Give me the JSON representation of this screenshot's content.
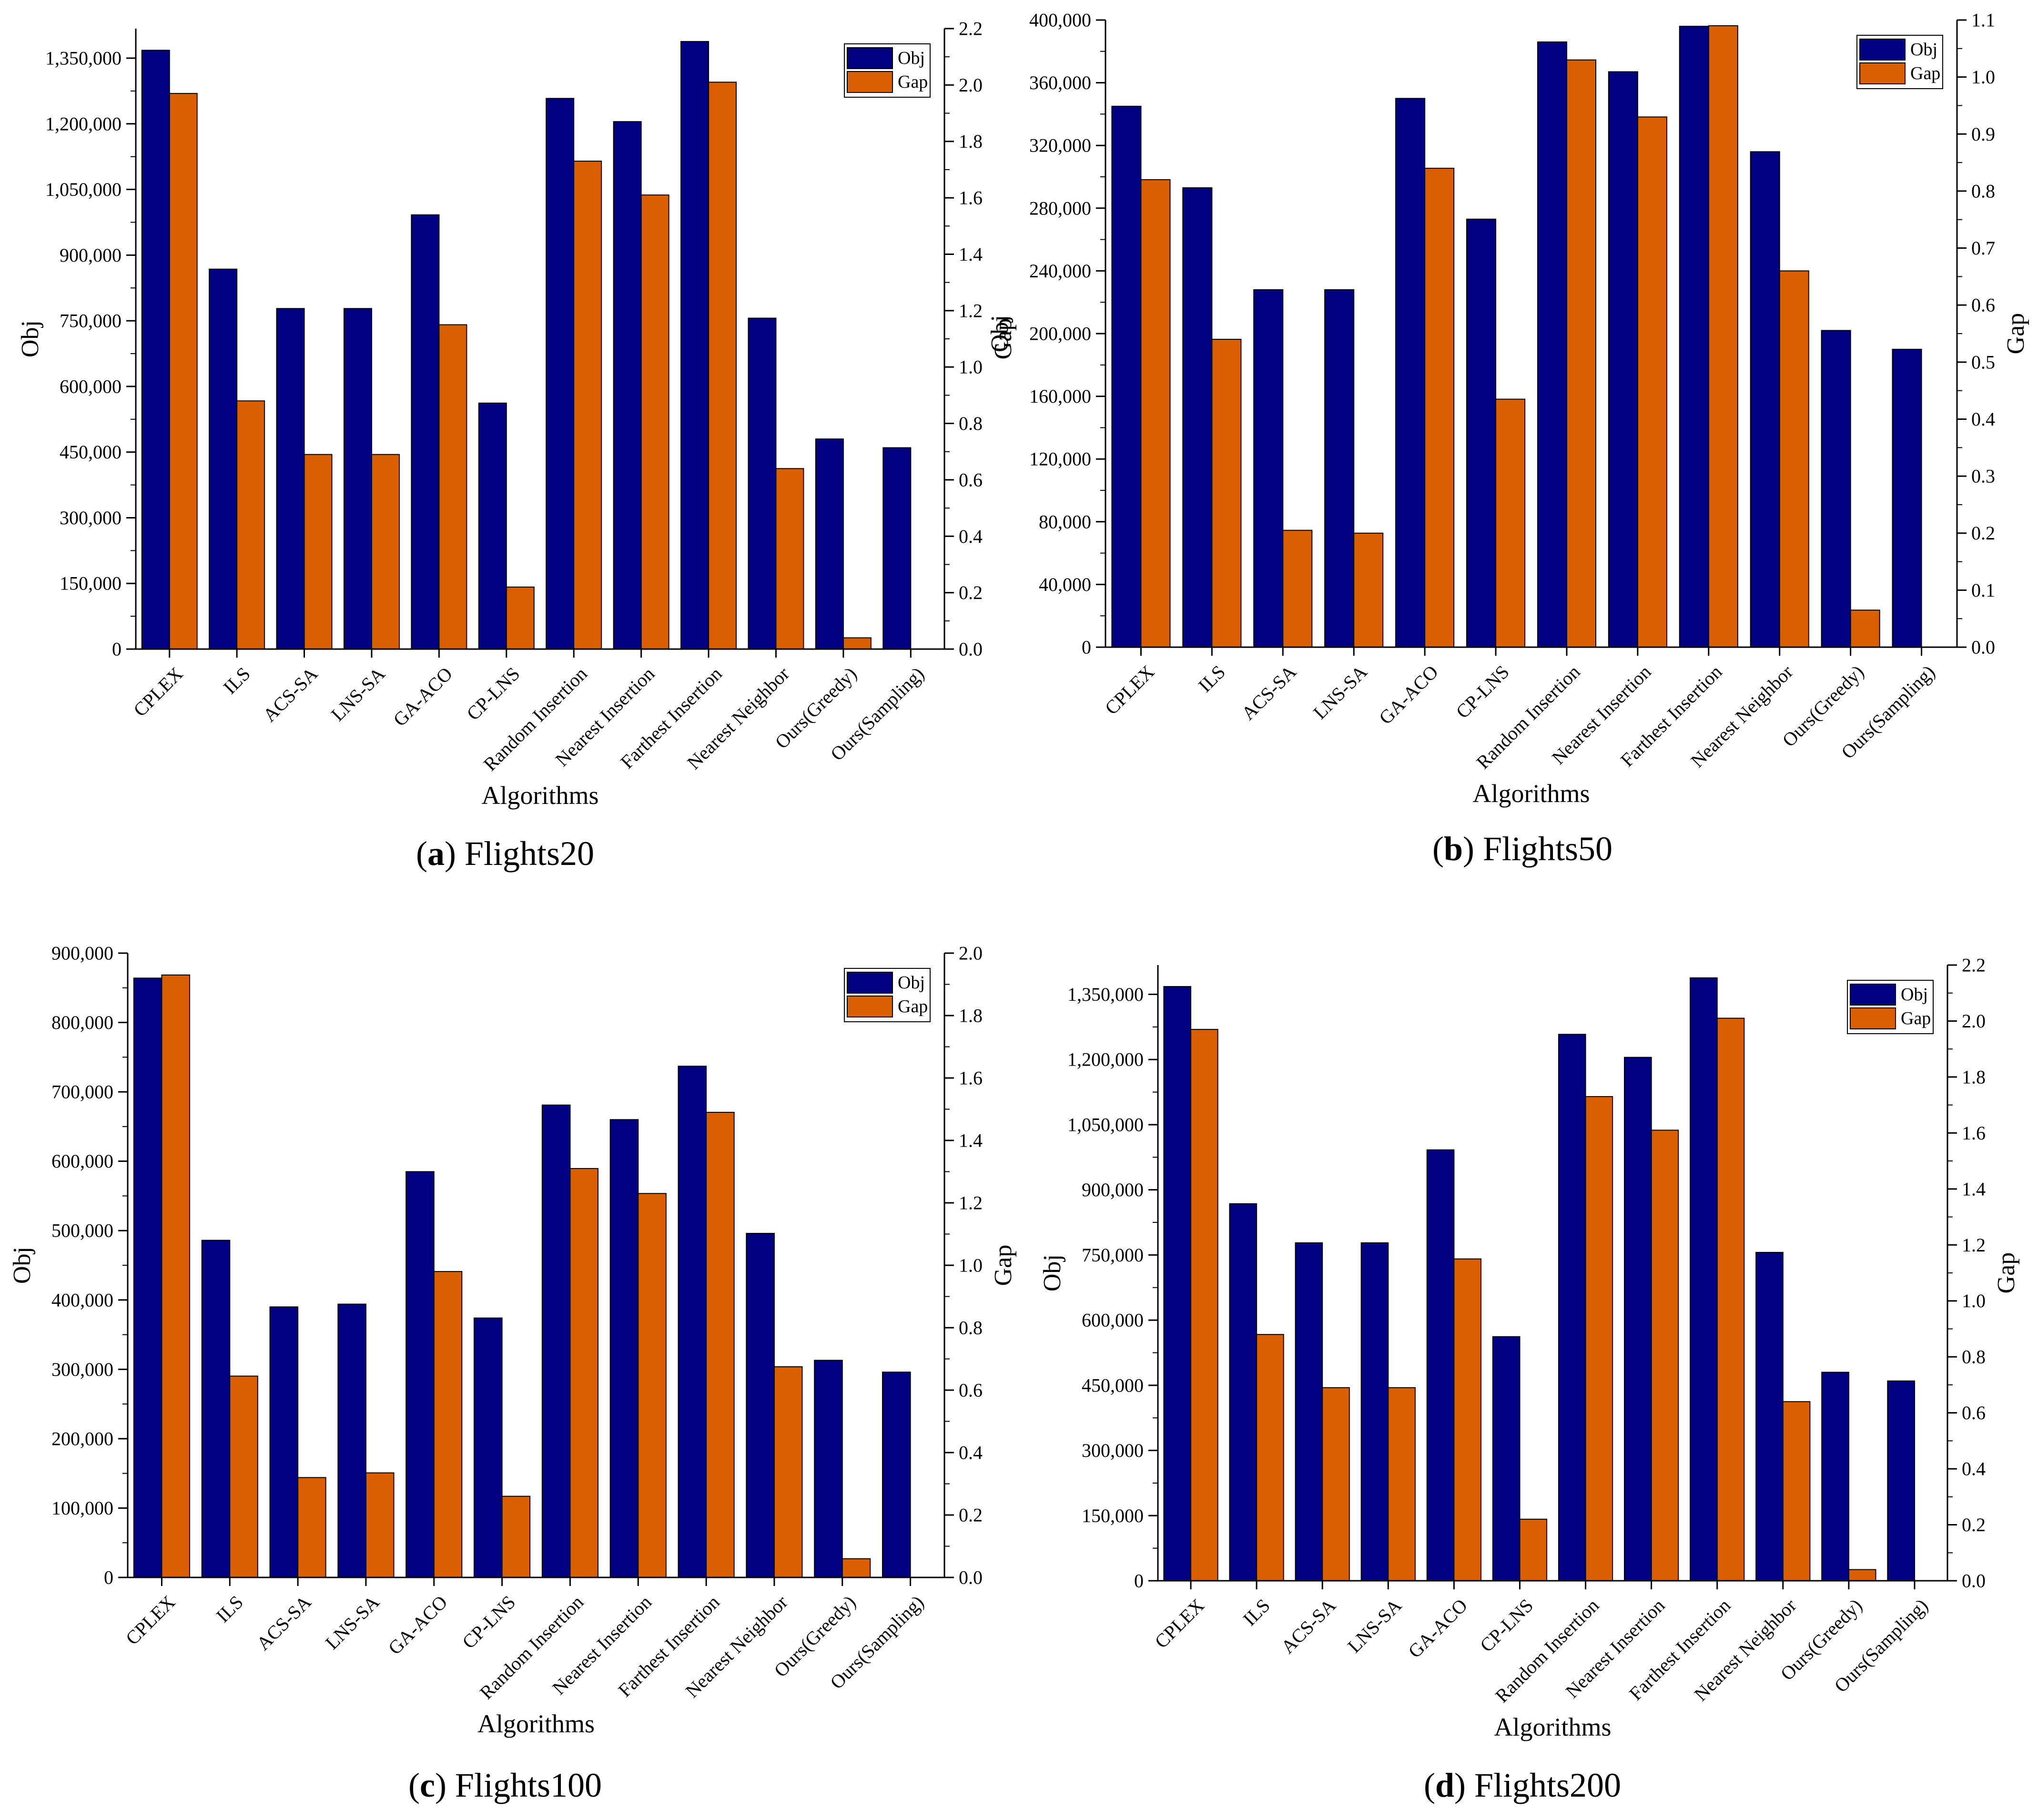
{
  "colors": {
    "obj": "#000080",
    "gap": "#d95f02",
    "axis": "#000000",
    "bar_stroke": "#000000"
  },
  "chart_data": [
    {
      "type": "bar",
      "caption_letter": "a",
      "caption_text": "Flights20",
      "xlabel": "Algorithms",
      "ylabel": "Obj",
      "y2label": "Gap",
      "ylim": [
        0,
        1417500
      ],
      "y2lim": [
        0,
        2.2
      ],
      "yticks": [
        0,
        150000,
        300000,
        450000,
        600000,
        750000,
        900000,
        1050000,
        1200000,
        1350000
      ],
      "ytick_labels": [
        "0",
        "150,000",
        "300,000",
        "450,000",
        "600,000",
        "750,000",
        "900,000",
        "1,050,000",
        "1,200,000",
        "1,350,000"
      ],
      "y2ticks": [
        0,
        0.2,
        0.4,
        0.6,
        0.8,
        1.0,
        1.2,
        1.4,
        1.6,
        1.8,
        2.0,
        2.2
      ],
      "y2tick_labels": [
        "0.0",
        "0.2",
        "0.4",
        "0.6",
        "0.8",
        "1.0",
        "1.2",
        "1.4",
        "1.6",
        "1.8",
        "2.0",
        "2.2"
      ],
      "categories": [
        "CPLEX",
        "ILS",
        "ACS-SA",
        "LNS-SA",
        "GA-ACO",
        "CP-LNS",
        "Random Insertion",
        "Nearest Insertion",
        "Farthest Insertion",
        "Nearest Neighbor",
        "Ours(Greedy)",
        "Ours(Sampling)"
      ],
      "legend": [
        "Obj",
        "Gap"
      ],
      "series": [
        {
          "name": "Obj",
          "axis": "left",
          "values": [
            1368000,
            868000,
            778000,
            778000,
            992000,
            562000,
            1258000,
            1205000,
            1388000,
            756000,
            480000,
            460000
          ]
        },
        {
          "name": "Gap",
          "axis": "right",
          "values": [
            1.97,
            0.88,
            0.69,
            0.69,
            1.15,
            0.22,
            1.73,
            1.61,
            2.01,
            0.64,
            0.04,
            0.0
          ]
        }
      ]
    },
    {
      "type": "bar",
      "caption_letter": "b",
      "caption_text": "Flights50",
      "xlabel": "Algorithms",
      "ylabel": "Obj",
      "y2label": "Gap",
      "ylim": [
        0,
        400000
      ],
      "y2lim": [
        0,
        1.1
      ],
      "yticks": [
        0,
        40000,
        80000,
        120000,
        160000,
        200000,
        240000,
        280000,
        320000,
        360000,
        400000
      ],
      "ytick_labels": [
        "0",
        "40,000",
        "80,000",
        "120,000",
        "160,000",
        "200,000",
        "240,000",
        "280,000",
        "320,000",
        "360,000",
        "400,000"
      ],
      "y2ticks": [
        0,
        0.1,
        0.2,
        0.3,
        0.4,
        0.5,
        0.6,
        0.7,
        0.8,
        0.9,
        1.0,
        1.1
      ],
      "y2tick_labels": [
        "0.0",
        "0.1",
        "0.2",
        "0.3",
        "0.4",
        "0.5",
        "0.6",
        "0.7",
        "0.8",
        "0.9",
        "1.0",
        "1.1"
      ],
      "categories": [
        "CPLEX",
        "ILS",
        "ACS-SA",
        "LNS-SA",
        "GA-ACO",
        "CP-LNS",
        "Random Insertion",
        "Nearest Insertion",
        "Farthest Insertion",
        "Nearest Neighbor",
        "Ours(Greedy)",
        "Ours(Sampling)"
      ],
      "legend": [
        "Obj",
        "Gap"
      ],
      "series": [
        {
          "name": "Obj",
          "axis": "left",
          "values": [
            345000,
            293000,
            228000,
            228000,
            350000,
            273000,
            386000,
            367000,
            396000,
            316000,
            202000,
            190000
          ]
        },
        {
          "name": "Gap",
          "axis": "right",
          "values": [
            0.82,
            0.54,
            0.205,
            0.2,
            0.84,
            0.435,
            1.03,
            0.93,
            1.09,
            0.66,
            0.065,
            0.0
          ]
        }
      ]
    },
    {
      "type": "bar",
      "caption_letter": "c",
      "caption_text": "Flights100",
      "xlabel": "Algorithms",
      "ylabel": "Obj",
      "y2label": "Gap",
      "ylim": [
        0,
        900000
      ],
      "y2lim": [
        0,
        2.0
      ],
      "yticks": [
        0,
        100000,
        200000,
        300000,
        400000,
        500000,
        600000,
        700000,
        800000,
        900000
      ],
      "ytick_labels": [
        "0",
        "100,000",
        "200,000",
        "300,000",
        "400,000",
        "500,000",
        "600,000",
        "700,000",
        "800,000",
        "900,000"
      ],
      "y2ticks": [
        0,
        0.2,
        0.4,
        0.6,
        0.8,
        1.0,
        1.2,
        1.4,
        1.6,
        1.8,
        2.0
      ],
      "y2tick_labels": [
        "0.0",
        "0.2",
        "0.4",
        "0.6",
        "0.8",
        "1.0",
        "1.2",
        "1.4",
        "1.6",
        "1.8",
        "2.0"
      ],
      "categories": [
        "CPLEX",
        "ILS",
        "ACS-SA",
        "LNS-SA",
        "GA-ACO",
        "CP-LNS",
        "Random Insertion",
        "Nearest Insertion",
        "Farthest Insertion",
        "Nearest Neighbor",
        "Ours(Greedy)",
        "Ours(Sampling)"
      ],
      "legend": [
        "Obj",
        "Gap"
      ],
      "series": [
        {
          "name": "Obj",
          "axis": "left",
          "values": [
            864000,
            486000,
            390000,
            394000,
            585000,
            374000,
            681000,
            660000,
            737000,
            496000,
            313000,
            296000
          ]
        },
        {
          "name": "Gap",
          "axis": "right",
          "values": [
            1.93,
            0.645,
            0.32,
            0.335,
            0.98,
            0.26,
            1.31,
            1.23,
            1.49,
            0.675,
            0.06,
            0.0
          ]
        }
      ]
    },
    {
      "type": "bar",
      "caption_letter": "d",
      "caption_text": "Flights200",
      "xlabel": "Algorithms",
      "ylabel": "Obj",
      "y2label": "Gap",
      "ylim": [
        0,
        1417500
      ],
      "y2lim": [
        0,
        2.2
      ],
      "yticks": [
        0,
        150000,
        300000,
        450000,
        600000,
        750000,
        900000,
        1050000,
        1200000,
        1350000
      ],
      "ytick_labels": [
        "0",
        "150,000",
        "300,000",
        "450,000",
        "600,000",
        "750,000",
        "900,000",
        "1,050,000",
        "1,200,000",
        "1,350,000"
      ],
      "y2ticks": [
        0,
        0.2,
        0.4,
        0.6,
        0.8,
        1.0,
        1.2,
        1.4,
        1.6,
        1.8,
        2.0,
        2.2
      ],
      "y2tick_labels": [
        "0.0",
        "0.2",
        "0.4",
        "0.6",
        "0.8",
        "1.0",
        "1.2",
        "1.4",
        "1.6",
        "1.8",
        "2.0",
        "2.2"
      ],
      "categories": [
        "CPLEX",
        "ILS",
        "ACS-SA",
        "LNS-SA",
        "GA-ACO",
        "CP-LNS",
        "Random Insertion",
        "Nearest Insertion",
        "Farthest Insertion",
        "Nearest Neighbor",
        "Ours(Greedy)",
        "Ours(Sampling)"
      ],
      "legend": [
        "Obj",
        "Gap"
      ],
      "series": [
        {
          "name": "Obj",
          "axis": "left",
          "values": [
            1368000,
            868000,
            778000,
            778000,
            992000,
            562000,
            1258000,
            1205000,
            1388000,
            756000,
            480000,
            460000
          ]
        },
        {
          "name": "Gap",
          "axis": "right",
          "values": [
            1.97,
            0.88,
            0.69,
            0.69,
            1.15,
            0.22,
            1.73,
            1.61,
            2.01,
            0.64,
            0.04,
            0.0
          ]
        }
      ]
    }
  ]
}
